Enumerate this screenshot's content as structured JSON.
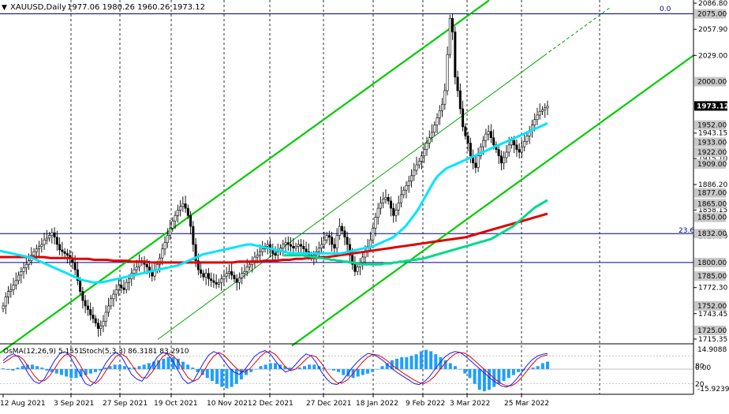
{
  "header": {
    "symbol": "XAUUSD,Daily",
    "ohlc": "1977.06 1980.26 1960.26 1973.12",
    "collapse_glyph": "▼"
  },
  "indicator_header": {
    "osma": "OsMA(12,26,9) 5.1551",
    "stoch": "Stoch(5,3,3) 86.3181 83.2910"
  },
  "colors": {
    "background": "#ffffff",
    "candle": "#000000",
    "ma_fast": "#00e5ff",
    "ma_mid": "#00d98a",
    "ma_slow": "#e00000",
    "channel_outer": "#00cc00",
    "channel_inner": "#00aa00",
    "hline": "#00008b",
    "osma_bar": "#1e9fff",
    "stoch_main": "#1a1aff",
    "stoch_signal": "#e00000",
    "current_price_bg": "#000000"
  },
  "fib_labels": {
    "top": "0.0",
    "mid": "23.6"
  },
  "chart_data": {
    "type": "candlestick",
    "title": "XAUUSD,Daily",
    "xlabel": "",
    "ylabel": "",
    "ylim": [
      1715.35,
      2086.8
    ],
    "price_ticks": [
      "2086.80",
      "2057.90",
      "2029.00",
      "1943.15",
      "1915.10",
      "1886.20",
      "1858.15",
      "1829.30",
      "1772.30",
      "1743.45",
      "1715.35"
    ],
    "level_labels": [
      "2075.00",
      "2000.00",
      "1952.00",
      "1933.00",
      "1922.00",
      "1909.00",
      "1877.00",
      "1865.00",
      "1850.00",
      "1832.00",
      "1800.00",
      "1785.00",
      "1752.00",
      "1725.00"
    ],
    "levels": [
      2075,
      1832,
      1800
    ],
    "current_price": "1973.12",
    "date_labels": [
      "12 Aug 2021",
      "3 Sep 2021",
      "27 Sep 2021",
      "19 Oct 2021",
      "10 Nov 2021",
      "2 Dec 2021",
      "27 Dec 2021",
      "18 Jan 2022",
      "9 Feb 2022",
      "3 Mar 2022",
      "25 Mar 2022"
    ],
    "closes": [
      1752,
      1762,
      1768,
      1770,
      1775,
      1780,
      1786,
      1790,
      1794,
      1798,
      1802,
      1808,
      1812,
      1815,
      1818,
      1820,
      1825,
      1827,
      1830,
      1833,
      1828,
      1820,
      1814,
      1812,
      1810,
      1808,
      1805,
      1800,
      1792,
      1780,
      1768,
      1758,
      1752,
      1748,
      1742,
      1738,
      1733,
      1727,
      1730,
      1735,
      1745,
      1752,
      1760,
      1765,
      1770,
      1775,
      1772,
      1770,
      1778,
      1782,
      1788,
      1792,
      1795,
      1800,
      1802,
      1798,
      1795,
      1790,
      1785,
      1792,
      1798,
      1805,
      1815,
      1822,
      1830,
      1838,
      1846,
      1852,
      1858,
      1862,
      1865,
      1860,
      1852,
      1840,
      1820,
      1802,
      1792,
      1788,
      1784,
      1788,
      1782,
      1780,
      1778,
      1776,
      1778,
      1782,
      1785,
      1788,
      1790,
      1786,
      1782,
      1778,
      1783,
      1788,
      1790,
      1795,
      1798,
      1802,
      1806,
      1808,
      1812,
      1815,
      1818,
      1820,
      1814,
      1810,
      1808,
      1812,
      1816,
      1820,
      1822,
      1820,
      1818,
      1816,
      1818,
      1820,
      1818,
      1815,
      1812,
      1808,
      1806,
      1808,
      1812,
      1816,
      1820,
      1825,
      1830,
      1828,
      1820,
      1816,
      1830,
      1840,
      1835,
      1828,
      1820,
      1808,
      1798,
      1790,
      1795,
      1800,
      1806,
      1812,
      1818,
      1825,
      1838,
      1850,
      1860,
      1866,
      1870,
      1872,
      1868,
      1860,
      1852,
      1858,
      1866,
      1875,
      1880,
      1885,
      1890,
      1896,
      1902,
      1908,
      1912,
      1918,
      1925,
      1932,
      1938,
      1944,
      1952,
      1960,
      1968,
      1975,
      1990,
      2030,
      2070,
      2055,
      2005,
      1990,
      1970,
      1950,
      1940,
      1932,
      1918,
      1910,
      1905,
      1918,
      1928,
      1935,
      1942,
      1945,
      1938,
      1930,
      1925,
      1918,
      1910,
      1916,
      1922,
      1930,
      1935,
      1930,
      1925,
      1922,
      1928,
      1934,
      1940,
      1946,
      1952,
      1958,
      1963,
      1967,
      1969,
      1971,
      1973
    ],
    "ma_fast": [
      1813,
      1812,
      1811,
      1810,
      1809,
      1808,
      1807,
      1806,
      1805,
      1803,
      1801,
      1799,
      1797,
      1795,
      1793,
      1791,
      1789,
      1787,
      1785,
      1783,
      1781,
      1780,
      1779,
      1778,
      1778,
      1778,
      1779,
      1780,
      1781,
      1782,
      1783,
      1784,
      1785,
      1786,
      1787,
      1788,
      1789,
      1790,
      1791,
      1792,
      1793,
      1794,
      1795,
      1796,
      1797,
      1799,
      1801,
      1803,
      1805,
      1807,
      1809,
      1810,
      1811,
      1812,
      1813,
      1814,
      1815,
      1816,
      1817,
      1818,
      1819,
      1820,
      1820,
      1819,
      1818,
      1817,
      1816,
      1815,
      1814,
      1813,
      1812,
      1811,
      1810,
      1810,
      1810,
      1810,
      1810,
      1810,
      1810,
      1810,
      1810,
      1810,
      1810,
      1810,
      1810,
      1811,
      1812,
      1813,
      1814,
      1815,
      1816,
      1817,
      1818,
      1820,
      1822,
      1824,
      1826,
      1828,
      1832,
      1836,
      1840,
      1846,
      1852,
      1858,
      1866,
      1874,
      1882,
      1890,
      1896,
      1900,
      1904,
      1906,
      1908,
      1910,
      1912,
      1914,
      1916,
      1918,
      1920,
      1922,
      1924,
      1926,
      1928,
      1930,
      1932,
      1934,
      1936,
      1938,
      1940,
      1942,
      1944,
      1946,
      1948,
      1950,
      1952,
      1954
    ],
    "ma_mid": [
      1808,
      1808,
      1808,
      1808,
      1808,
      1808,
      1808,
      1807,
      1807,
      1806,
      1806,
      1805,
      1805,
      1804,
      1804,
      1803,
      1803,
      1802,
      1802,
      1801,
      1801,
      1800,
      1800,
      1799,
      1799,
      1798,
      1798,
      1798,
      1798,
      1798,
      1798,
      1798,
      1799,
      1799,
      1799,
      1800,
      1800,
      1801,
      1801,
      1802,
      1802,
      1803,
      1803,
      1804,
      1804,
      1805,
      1806,
      1807,
      1808,
      1809,
      1810,
      1811,
      1812,
      1813,
      1814,
      1815,
      1816,
      1817,
      1818,
      1819,
      1820,
      1821,
      1822,
      1823,
      1824,
      1825,
      1826,
      1828,
      1830,
      1832,
      1834,
      1836,
      1838,
      1840,
      1843,
      1846,
      1849,
      1852,
      1855,
      1858,
      1861,
      1863,
      1865,
      1867,
      1869
    ],
    "ma_slow": [
      1806,
      1806,
      1806,
      1806,
      1806,
      1806,
      1806,
      1806,
      1805,
      1805,
      1805,
      1805,
      1804,
      1804,
      1804,
      1803,
      1803,
      1803,
      1802,
      1802,
      1802,
      1801,
      1801,
      1801,
      1800,
      1800,
      1800,
      1800,
      1800,
      1800,
      1800,
      1800,
      1800,
      1800,
      1800,
      1800,
      1800,
      1800,
      1801,
      1801,
      1801,
      1801,
      1802,
      1802,
      1802,
      1803,
      1803,
      1804,
      1804,
      1805,
      1805,
      1806,
      1806,
      1807,
      1808,
      1809,
      1810,
      1811,
      1812,
      1813,
      1814,
      1815,
      1816,
      1817,
      1818,
      1819,
      1820,
      1821,
      1822,
      1823,
      1824,
      1825,
      1826,
      1827,
      1828,
      1830,
      1832,
      1834,
      1836,
      1838,
      1840,
      1842,
      1844,
      1846,
      1848,
      1850,
      1852,
      1854
    ],
    "indicator": {
      "ylim": [
        -15.9239,
        14.9088
      ],
      "tick_labels": [
        "14.9088",
        "80",
        "0.00",
        "20",
        "-15.9239"
      ],
      "osma": [
        0.5,
        -0.5,
        -1,
        1,
        2,
        3,
        3,
        2,
        1,
        -1,
        -2,
        -3,
        -4,
        -5,
        -6,
        -6,
        -5,
        -4,
        -3,
        -2,
        -1,
        1,
        2,
        3,
        3,
        2,
        1,
        1,
        2,
        3,
        4,
        5,
        6,
        7,
        8,
        8,
        7,
        5,
        3,
        1,
        -2,
        -4,
        -6,
        -8,
        -10,
        -12,
        -13,
        -12,
        -10,
        -7,
        -4,
        -2,
        0,
        2,
        3,
        4,
        4,
        3,
        2,
        1,
        0,
        1,
        2,
        3,
        3,
        2,
        1,
        0,
        -1,
        -2,
        -4,
        -5,
        -6,
        -5,
        -4,
        -3,
        -2,
        0,
        2,
        4,
        6,
        7,
        8,
        8,
        9,
        10,
        12,
        13,
        12,
        10,
        8,
        6,
        4,
        2,
        0,
        -3,
        -6,
        -10,
        -14,
        -15,
        -14,
        -12,
        -10,
        -8,
        -6,
        -4,
        -2,
        -1,
        0,
        1,
        2,
        4,
        5
      ],
      "stoch_main": [
        70,
        80,
        85,
        78,
        60,
        40,
        25,
        20,
        30,
        50,
        70,
        85,
        90,
        80,
        60,
        40,
        20,
        15,
        25,
        45,
        65,
        80,
        88,
        80,
        60,
        40,
        30,
        25,
        40,
        60,
        78,
        88,
        85,
        70,
        50,
        30,
        20,
        25,
        45,
        65,
        82,
        90,
        85,
        70,
        55,
        45,
        40,
        50,
        65,
        80,
        88,
        92,
        85,
        70,
        55,
        45,
        50,
        62,
        75,
        85,
        80,
        65,
        45,
        30,
        20,
        18,
        25,
        40,
        55,
        68,
        78,
        86,
        84,
        78,
        70,
        60,
        50,
        42,
        35,
        28,
        20,
        18,
        24,
        35,
        50,
        65,
        78,
        86,
        90,
        88,
        80,
        70,
        60,
        50,
        40,
        30,
        22,
        15,
        12,
        18,
        30,
        45,
        60,
        72,
        80,
        84,
        86
      ],
      "stoch_signal": [
        65,
        72,
        80,
        81,
        72,
        55,
        38,
        26,
        26,
        36,
        52,
        70,
        82,
        85,
        78,
        60,
        40,
        25,
        20,
        30,
        48,
        65,
        80,
        85,
        78,
        62,
        45,
        33,
        32,
        45,
        62,
        78,
        86,
        82,
        70,
        50,
        33,
        25,
        30,
        45,
        65,
        80,
        88,
        82,
        70,
        58,
        48,
        45,
        52,
        65,
        78,
        88,
        90,
        84,
        70,
        56,
        48,
        52,
        62,
        74,
        82,
        78,
        64,
        46,
        32,
        22,
        21,
        28,
        40,
        54,
        67,
        78,
        84,
        82,
        76,
        68,
        58,
        50,
        42,
        35,
        28,
        22,
        20,
        26,
        36,
        50,
        64,
        76,
        85,
        88,
        86,
        78,
        68,
        58,
        48,
        38,
        28,
        20,
        15,
        15,
        22,
        34,
        48,
        62,
        74,
        80,
        83
      ]
    }
  }
}
